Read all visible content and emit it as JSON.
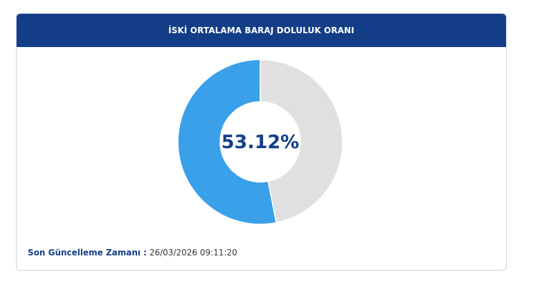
{
  "card": {
    "title": "İSKİ ORTALAMA BARAJ DOLULUK ORANI"
  },
  "chart_data": {
    "type": "pie",
    "title": "İSKİ ORTALAMA BARAJ DOLULUK ORANI",
    "center_label": "53.12%",
    "slices": [
      {
        "value": 53.12,
        "color": "#3aa0ea"
      },
      {
        "value": 46.88,
        "color": "#e0e0e0"
      }
    ]
  },
  "footer": {
    "label": "Son Güncelleme Zamanı :",
    "value": "26/03/2026 09:11:20"
  },
  "colors": {
    "header": "#133e87",
    "accent": "#3aa0ea",
    "remainder": "#e0e0e0"
  }
}
